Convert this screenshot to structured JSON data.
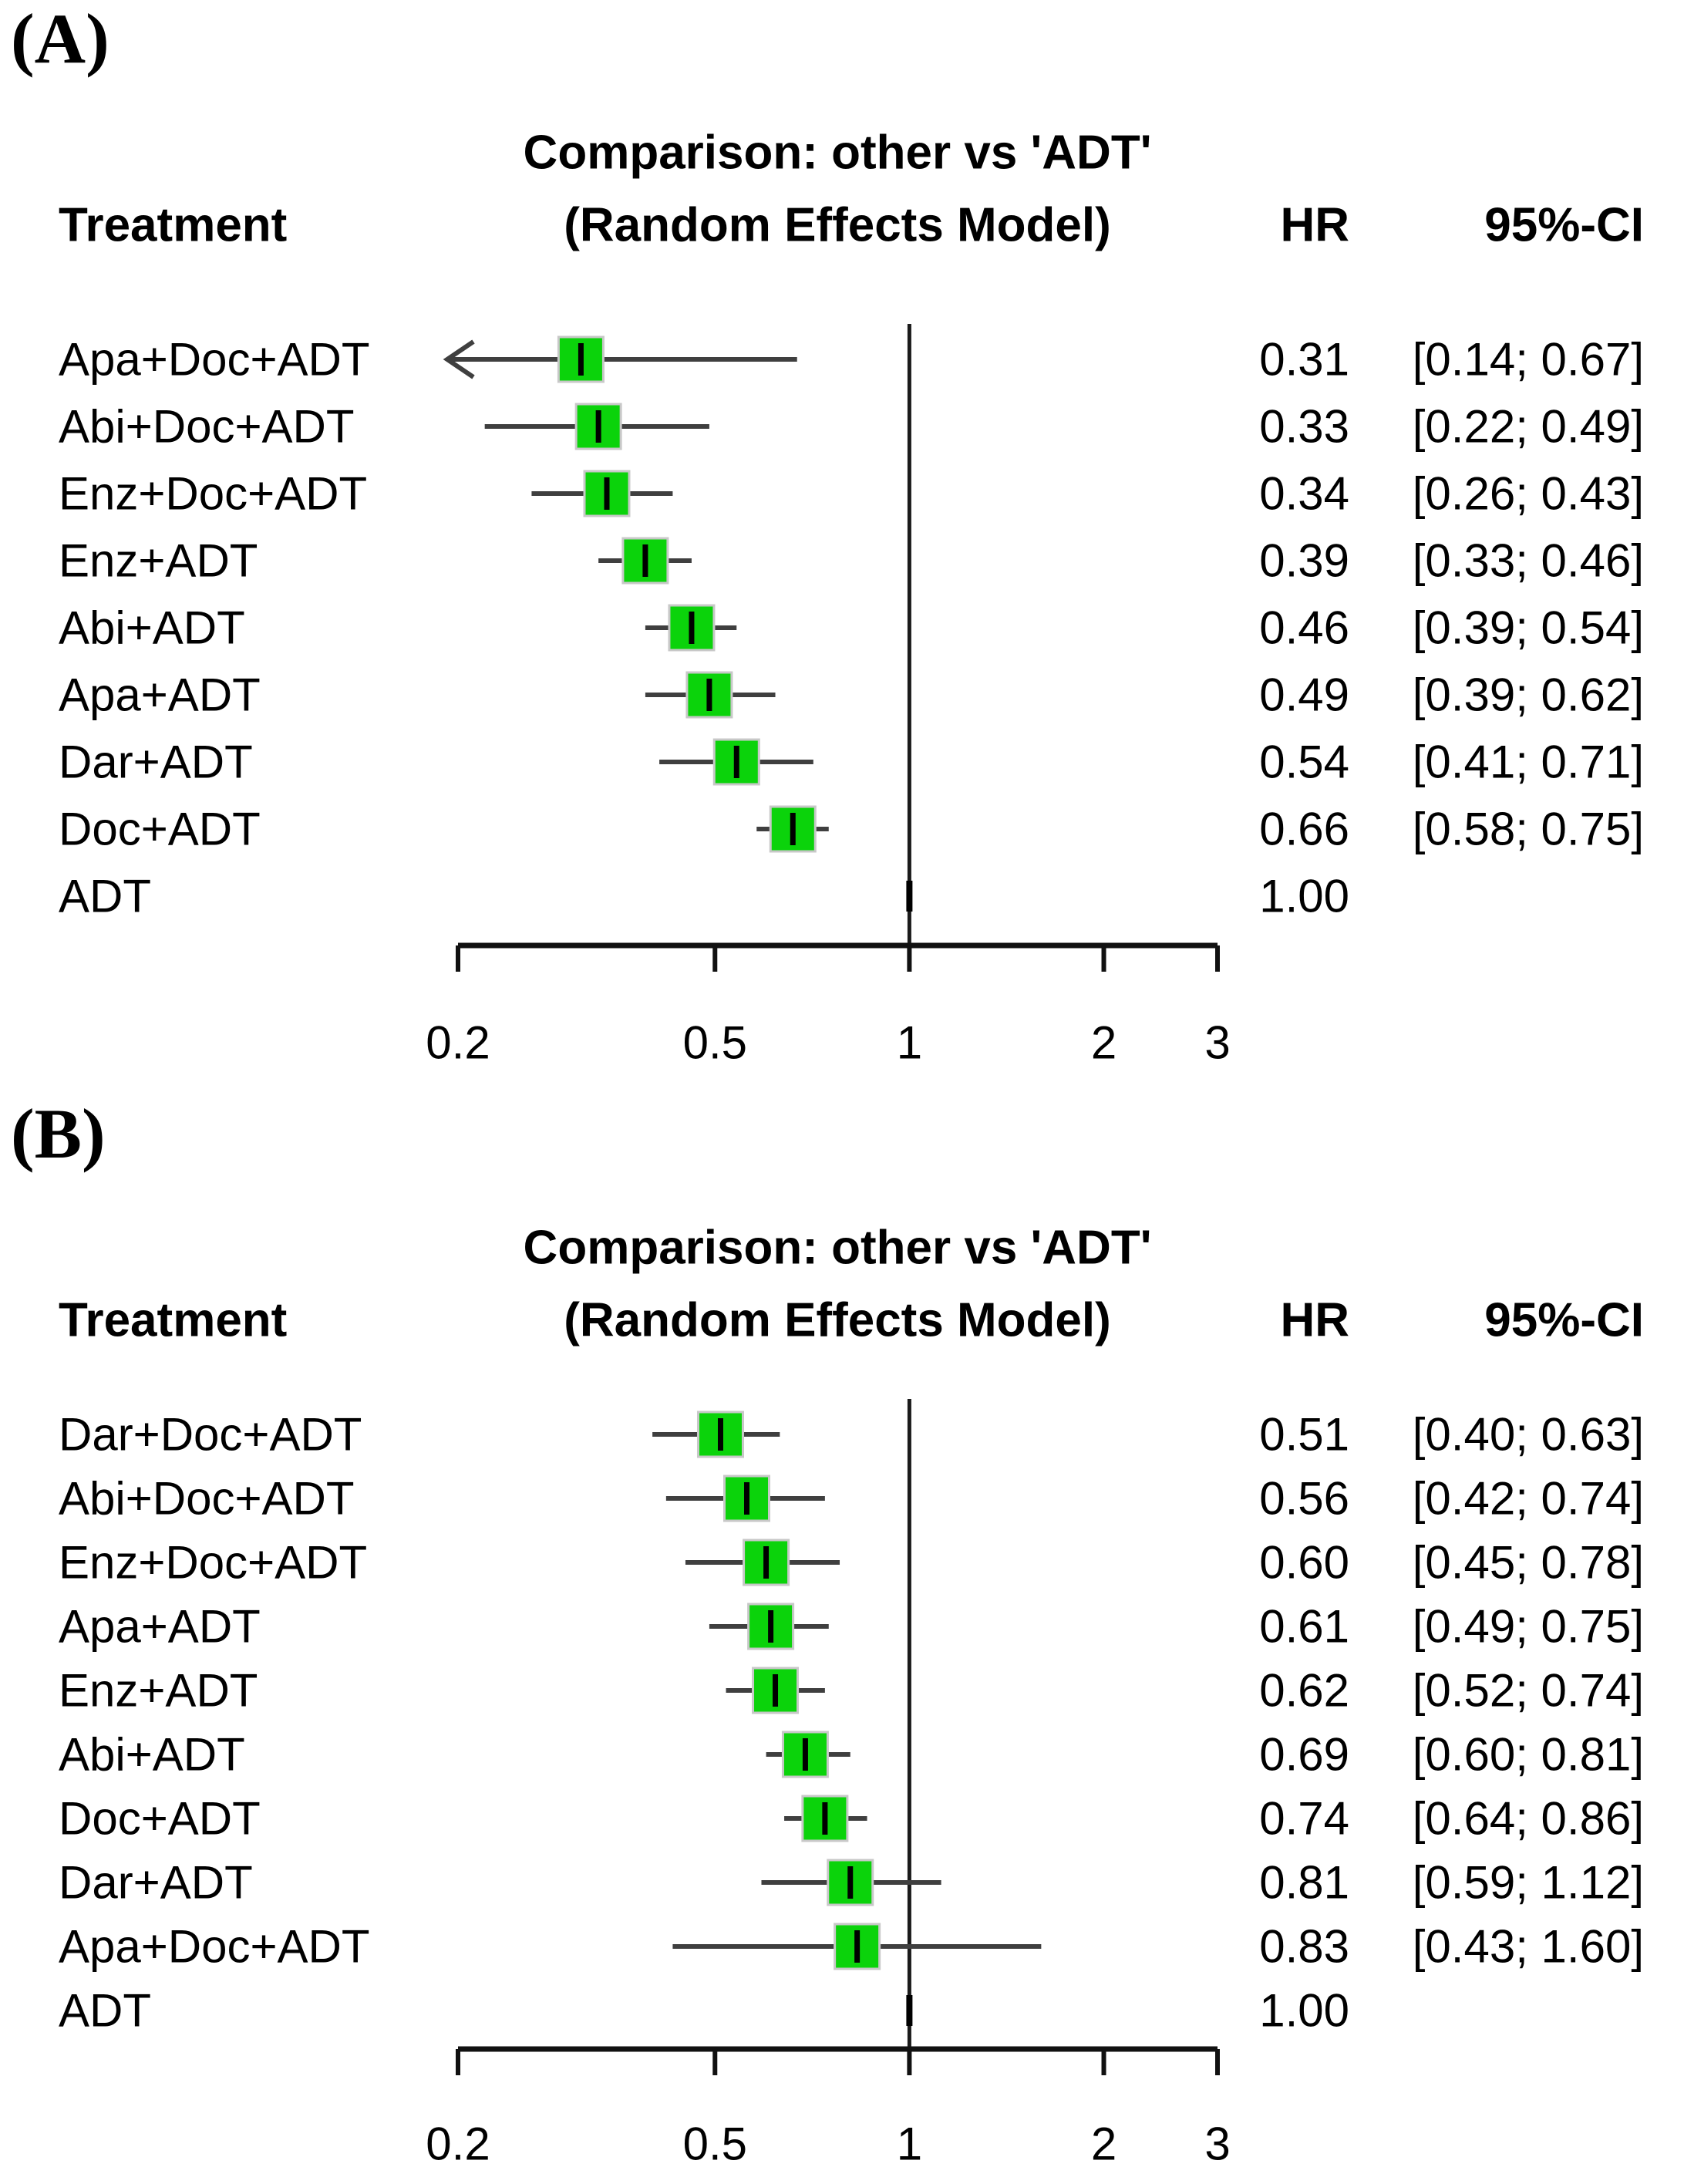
{
  "figure": {
    "background": "#ffffff",
    "description": "Forest plots of network meta-analysis: hazard ratios of treatments versus ADT"
  },
  "colors": {
    "square_fill": "#0bd30b",
    "square_border": "#c8c8c8",
    "ci_line": "#3f3f3f",
    "axis_line": "#111111",
    "reference_line": "#1a1a1a",
    "text": "#000000"
  },
  "chart_data": [
    {
      "type": "forest",
      "panel_label": "(A)",
      "title_line1": "Comparison: other vs 'ADT'",
      "title_line2": "(Random Effects Model)",
      "columns": {
        "treatment": "Treatment",
        "hr": "HR",
        "ci": "95%-CI"
      },
      "x_scale": "log",
      "xlim": [
        0.2,
        3
      ],
      "x_ticks": [
        0.2,
        0.5,
        1,
        2,
        3
      ],
      "x_tick_labels": [
        "0.2",
        "0.5",
        "1",
        "2",
        "3"
      ],
      "reference_value": 1,
      "rows": [
        {
          "treatment": "Apa+Doc+ADT",
          "hr": 0.31,
          "lower": 0.14,
          "upper": 0.67,
          "hr_text": "0.31",
          "ci_text": "[0.14; 0.67]",
          "clipped_left": true
        },
        {
          "treatment": "Abi+Doc+ADT",
          "hr": 0.33,
          "lower": 0.22,
          "upper": 0.49,
          "hr_text": "0.33",
          "ci_text": "[0.22; 0.49]"
        },
        {
          "treatment": "Enz+Doc+ADT",
          "hr": 0.34,
          "lower": 0.26,
          "upper": 0.43,
          "hr_text": "0.34",
          "ci_text": "[0.26; 0.43]"
        },
        {
          "treatment": "Enz+ADT",
          "hr": 0.39,
          "lower": 0.33,
          "upper": 0.46,
          "hr_text": "0.39",
          "ci_text": "[0.33; 0.46]"
        },
        {
          "treatment": "Abi+ADT",
          "hr": 0.46,
          "lower": 0.39,
          "upper": 0.54,
          "hr_text": "0.46",
          "ci_text": "[0.39; 0.54]"
        },
        {
          "treatment": "Apa+ADT",
          "hr": 0.49,
          "lower": 0.39,
          "upper": 0.62,
          "hr_text": "0.49",
          "ci_text": "[0.39; 0.62]"
        },
        {
          "treatment": "Dar+ADT",
          "hr": 0.54,
          "lower": 0.41,
          "upper": 0.71,
          "hr_text": "0.54",
          "ci_text": "[0.41; 0.71]"
        },
        {
          "treatment": "Doc+ADT",
          "hr": 0.66,
          "lower": 0.58,
          "upper": 0.75,
          "hr_text": "0.66",
          "ci_text": "[0.58; 0.75]"
        },
        {
          "treatment": "ADT",
          "hr": 1.0,
          "hr_text": "1.00",
          "ci_text": "",
          "reference": true
        }
      ]
    },
    {
      "type": "forest",
      "panel_label": "(B)",
      "title_line1": "Comparison: other vs 'ADT'",
      "title_line2": "(Random Effects Model)",
      "columns": {
        "treatment": "Treatment",
        "hr": "HR",
        "ci": "95%-CI"
      },
      "x_scale": "log",
      "xlim": [
        0.2,
        3
      ],
      "x_ticks": [
        0.2,
        0.5,
        1,
        2,
        3
      ],
      "x_tick_labels": [
        "0.2",
        "0.5",
        "1",
        "2",
        "3"
      ],
      "reference_value": 1,
      "rows": [
        {
          "treatment": "Dar+Doc+ADT",
          "hr": 0.51,
          "lower": 0.4,
          "upper": 0.63,
          "hr_text": "0.51",
          "ci_text": "[0.40; 0.63]"
        },
        {
          "treatment": "Abi+Doc+ADT",
          "hr": 0.56,
          "lower": 0.42,
          "upper": 0.74,
          "hr_text": "0.56",
          "ci_text": "[0.42; 0.74]"
        },
        {
          "treatment": "Enz+Doc+ADT",
          "hr": 0.6,
          "lower": 0.45,
          "upper": 0.78,
          "hr_text": "0.60",
          "ci_text": "[0.45; 0.78]"
        },
        {
          "treatment": "Apa+ADT",
          "hr": 0.61,
          "lower": 0.49,
          "upper": 0.75,
          "hr_text": "0.61",
          "ci_text": "[0.49; 0.75]"
        },
        {
          "treatment": "Enz+ADT",
          "hr": 0.62,
          "lower": 0.52,
          "upper": 0.74,
          "hr_text": "0.62",
          "ci_text": "[0.52; 0.74]"
        },
        {
          "treatment": "Abi+ADT",
          "hr": 0.69,
          "lower": 0.6,
          "upper": 0.81,
          "hr_text": "0.69",
          "ci_text": "[0.60; 0.81]"
        },
        {
          "treatment": "Doc+ADT",
          "hr": 0.74,
          "lower": 0.64,
          "upper": 0.86,
          "hr_text": "0.74",
          "ci_text": "[0.64; 0.86]"
        },
        {
          "treatment": "Dar+ADT",
          "hr": 0.81,
          "lower": 0.59,
          "upper": 1.12,
          "hr_text": "0.81",
          "ci_text": "[0.59; 1.12]"
        },
        {
          "treatment": "Apa+Doc+ADT",
          "hr": 0.83,
          "lower": 0.43,
          "upper": 1.6,
          "hr_text": "0.83",
          "ci_text": "[0.43; 1.60]"
        },
        {
          "treatment": "ADT",
          "hr": 1.0,
          "hr_text": "1.00",
          "ci_text": "",
          "reference": true
        }
      ]
    }
  ]
}
